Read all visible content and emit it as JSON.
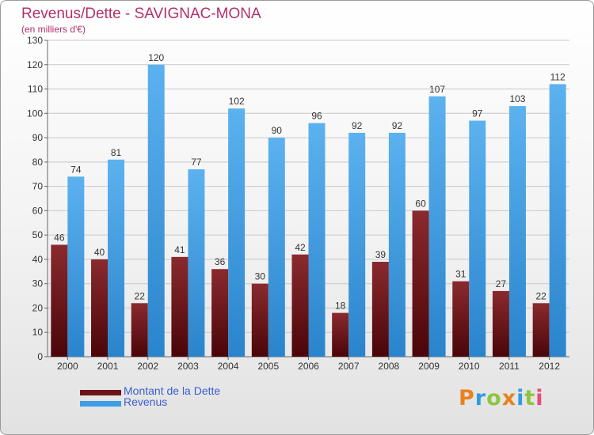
{
  "chart_data": {
    "type": "bar",
    "title": "Revenus/Dette - SAVIGNAC-MONA",
    "subtitle": "(en milliers d'€)",
    "categories": [
      "2000",
      "2001",
      "2002",
      "2003",
      "2004",
      "2005",
      "2006",
      "2007",
      "2008",
      "2009",
      "2010",
      "2011",
      "2012"
    ],
    "series": [
      {
        "name": "Montant de la Dette",
        "color": "#7a1a1e",
        "values": [
          46,
          40,
          22,
          41,
          36,
          30,
          42,
          18,
          39,
          60,
          31,
          27,
          22
        ]
      },
      {
        "name": "Revenus",
        "color": "#3d9de6",
        "values": [
          74,
          81,
          120,
          77,
          102,
          90,
          96,
          92,
          92,
          107,
          97,
          103,
          112
        ]
      }
    ],
    "ylim": [
      0,
      130
    ],
    "yticks": [
      0,
      10,
      20,
      30,
      40,
      50,
      60,
      70,
      80,
      90,
      100,
      110,
      120,
      130
    ],
    "grid": true,
    "legend": "bottom-left"
  },
  "logo": {
    "text": "Proxiti",
    "letters": [
      "P",
      "r",
      "o",
      "x",
      "i",
      "t",
      "i"
    ],
    "colors": [
      "#e8821e",
      "#2f9be0",
      "#8cc63f",
      "#e8821e",
      "#2f9be0",
      "#8cc63f",
      "#e84a7b"
    ]
  }
}
